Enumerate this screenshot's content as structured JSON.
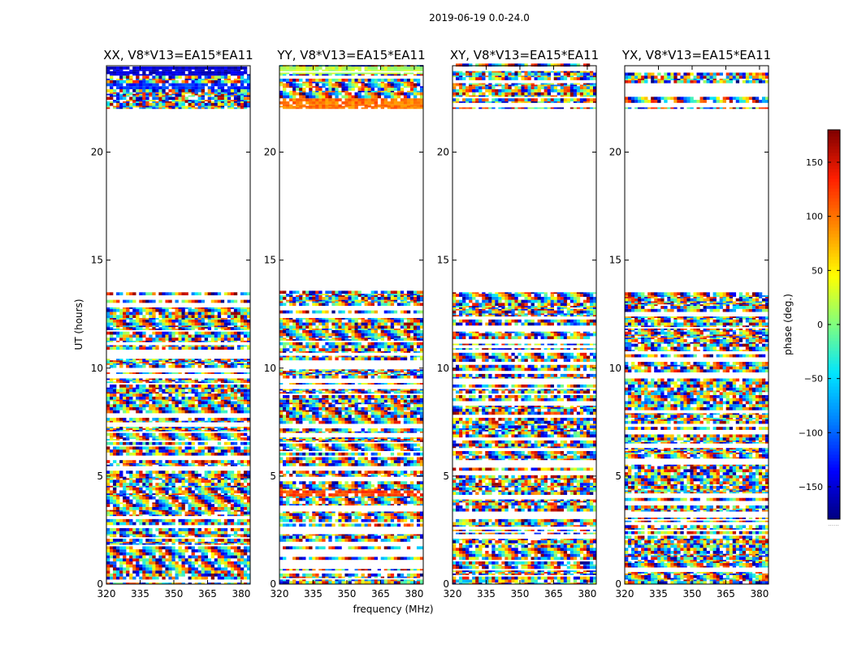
{
  "figure": {
    "suptitle": "2019-06-19 0.0-24.0",
    "ylabel": "UT (hours)",
    "xlabel": "frequency (MHz)",
    "colorbar_label": "phase (deg.)",
    "colorbar_offset_text": "......",
    "colormap": [
      "#00007f",
      "#0000ff",
      "#007fff",
      "#00e5ff",
      "#7fff7f",
      "#ffff00",
      "#ff8c00",
      "#ff1e00",
      "#7f0000"
    ]
  },
  "chart_data": {
    "type": "heatmap",
    "variable": "phase (deg.)",
    "shared_x": {
      "label": "frequency (MHz)",
      "range": [
        320,
        384
      ],
      "ticks": [
        320,
        335,
        350,
        365,
        380
      ]
    },
    "shared_y": {
      "label": "UT (hours)",
      "range": [
        0,
        24
      ],
      "ticks": [
        0,
        5,
        10,
        15,
        20
      ]
    },
    "color_scale": {
      "range": [
        -180,
        180
      ],
      "ticks": [
        -150,
        -100,
        -50,
        0,
        50,
        100,
        150
      ],
      "colormap": "jet"
    },
    "data_gap_hours": [
      13.5,
      22.0
    ],
    "panels": [
      {
        "title": "XX, V8*V13=EA15*EA11",
        "coherent_bands": [
          {
            "t": [
              23.45,
              23.95
            ],
            "phase": -150
          },
          {
            "t": [
              22.9,
              23.1
            ],
            "phase": -120
          }
        ]
      },
      {
        "title": "YY, V8*V13=EA15*EA11",
        "coherent_bands": [
          {
            "t": [
              23.6,
              23.95
            ],
            "phase": 20
          },
          {
            "t": [
              22.0,
              22.4
            ],
            "phase": 100
          },
          {
            "t": [
              4.0,
              4.25
            ],
            "phase": 120
          }
        ]
      },
      {
        "title": "XY, V8*V13=EA15*EA11",
        "coherent_bands": []
      },
      {
        "title": "YX, V8*V13=EA15*EA11",
        "coherent_bands": []
      }
    ]
  }
}
